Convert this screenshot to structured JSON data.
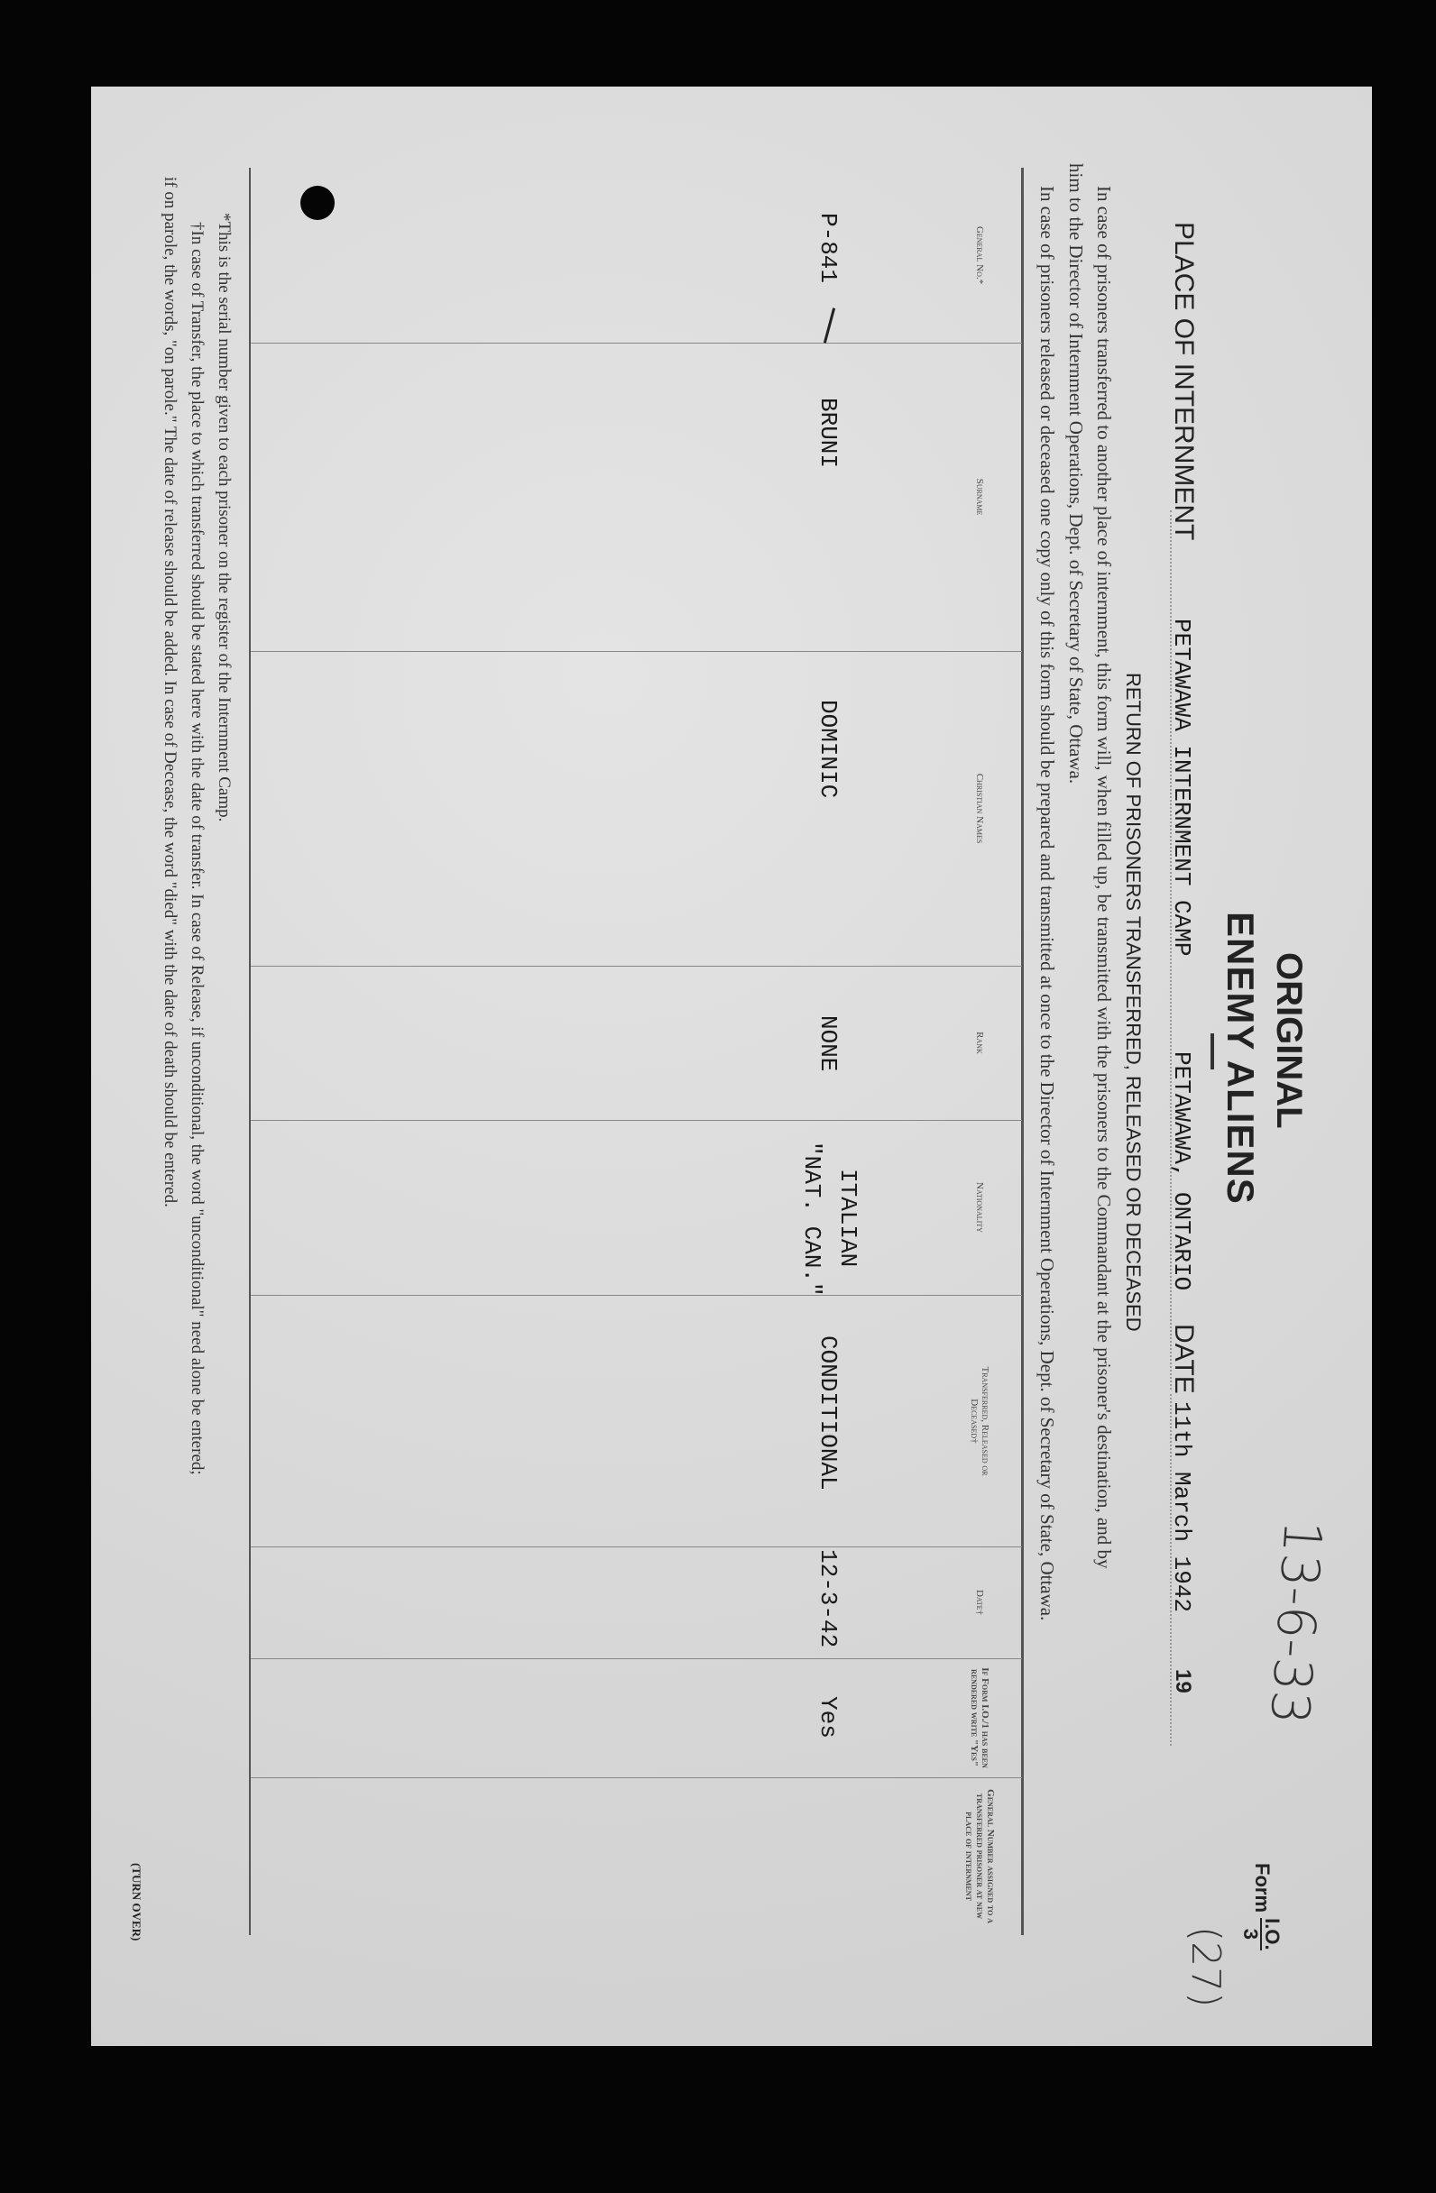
{
  "header": {
    "original_stamp": "ORIGINAL",
    "title": "ENEMY ALIENS",
    "form_label": "Form",
    "form_numerator": "I.O.",
    "form_denominator": "3",
    "handwritten_ref": "13-6-33",
    "handwritten_number": "(27)",
    "place_label": "PLACE OF INTERNMENT",
    "place_value": "PETAWAWA INTERNMENT CAMP",
    "location_value": "PETAWAWA, ONTARIO",
    "date_label": "DATE",
    "date_value": "11th March 1942",
    "year_prefix": "19",
    "subtitle": "RETURN OF PRISONERS TRANSFERRED, RELEASED OR DECEASED"
  },
  "instructions": [
    "In case of prisoners transferred to another place of internment, this form will, when filled up, be transmitted with the prisoners to the Commandant at the prisoner's destination, and by",
    "him to the Director of Internment Operations, Dept. of Secretary of State, Ottawa.",
    "In case of prisoners released or deceased one copy only of this form should be prepared and transmitted at once to the Director of Internment Operations, Dept. of Secretary of State, Ottawa."
  ],
  "table": {
    "columns": [
      "General No.*",
      "Surname",
      "Christian Names",
      "Rank",
      "Nationality",
      "Transferred, Released or Deceased†",
      "Date†",
      "If Form I.O./1 has been rendered write \"Yes\"",
      "General Number assigned to a transferred prisoner at new place of internment"
    ],
    "rows": [
      {
        "general_no": "P-841",
        "surname": "BRUNI",
        "christian_names": "DOMINIC",
        "rank": "NONE",
        "nationality_1": "ITALIAN",
        "nationality_2": "\"NAT. CAN.\"",
        "status": "CONDITIONAL",
        "date": "12-3-42",
        "form_rendered": "Yes",
        "new_number": ""
      }
    ]
  },
  "footnotes": [
    "*This is the serial number given to each prisoner on the register of the Internment Camp.",
    "†In case of Transfer, the place to which transferred should be stated here with the date of transfer.   In case of Release, if unconditional, the word \"unconditional\" need alone be entered;",
    "if on parole, the words, \"on parole.\"  The date of release should be added.   In case of Decease, the word \"died\" with the date of death should be entered."
  ],
  "turn_over": "(TURN OVER)",
  "colors": {
    "background": "#050505",
    "paper": "#d9d9d9",
    "ink": "#222222"
  }
}
